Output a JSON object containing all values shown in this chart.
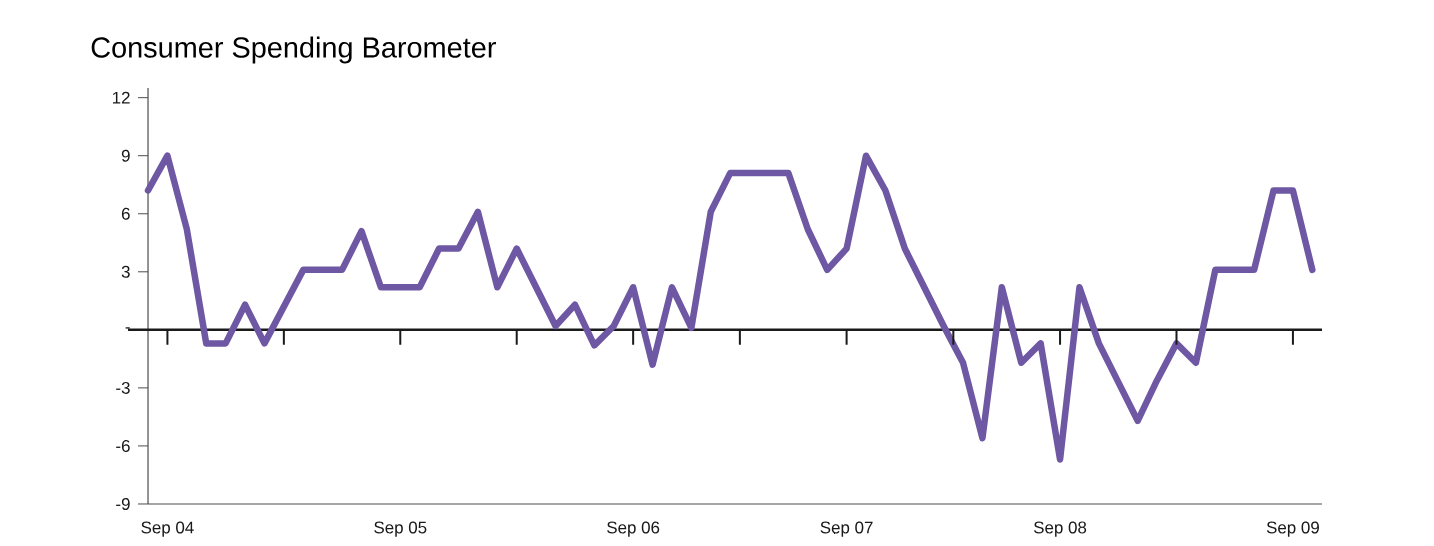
{
  "chart_data": {
    "type": "line",
    "title": "Consumer Spending Barometer",
    "categories": [
      null,
      "Sep 04",
      null,
      null,
      null,
      null,
      null,
      null,
      null,
      null,
      null,
      null,
      null,
      "Sep 05",
      null,
      null,
      null,
      null,
      null,
      null,
      null,
      null,
      null,
      null,
      null,
      "Sep 06",
      null,
      null,
      null,
      null,
      null,
      null,
      null,
      null,
      null,
      null,
      "Sep 07",
      null,
      null,
      null,
      null,
      null,
      null,
      null,
      null,
      null,
      null,
      "Sep 08",
      null,
      null,
      null,
      null,
      null,
      null,
      null,
      null,
      null,
      null,
      null,
      "Sep 09",
      null
    ],
    "series": [
      {
        "color": "#6e58a4",
        "values": [
          7.2,
          9.0,
          5.2,
          -0.7,
          -0.7,
          1.3,
          -0.7,
          1.2,
          3.1,
          3.1,
          3.1,
          5.1,
          2.2,
          2.2,
          2.2,
          4.2,
          4.2,
          6.1,
          2.2,
          4.2,
          2.2,
          0.2,
          1.3,
          -0.8,
          0.2,
          2.2,
          -1.8,
          2.2,
          0.1,
          6.1,
          8.1,
          8.1,
          8.1,
          8.1,
          5.2,
          3.1,
          4.2,
          9.0,
          7.2,
          4.2,
          2.2,
          0.2,
          -1.7,
          -5.6,
          2.2,
          -1.7,
          -0.7,
          -6.7,
          2.2,
          -0.7,
          -2.7,
          -4.7,
          -2.6,
          -0.7,
          -1.7,
          3.1,
          3.1,
          3.1,
          7.2,
          7.2,
          3.1
        ]
      }
    ],
    "ylim": [
      -9,
      12.5
    ],
    "yticks": [
      -9,
      -6,
      -3,
      {
        "value": 0,
        "label": "-"
      },
      3,
      6,
      9,
      12
    ],
    "ref_lines": [
      {
        "axis": "y",
        "value": 0,
        "color": "#1a1a1a"
      }
    ],
    "grid": false,
    "marker": "none",
    "line_style": "solid"
  }
}
